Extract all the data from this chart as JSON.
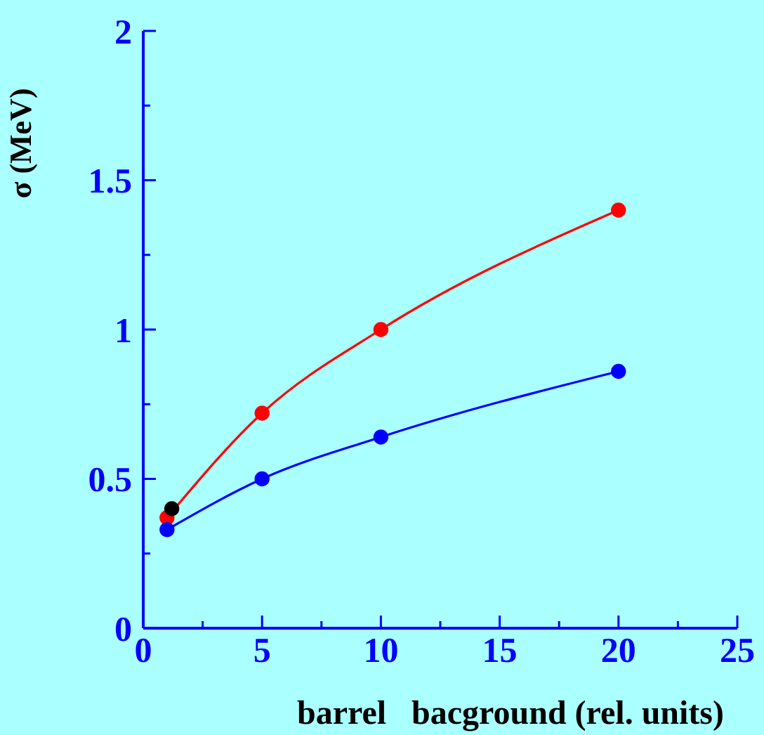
{
  "chart_data": {
    "type": "line",
    "ylabel": "σ (MeV)",
    "xlabel": "barrel   bacground (rel. units)",
    "xlim": [
      0,
      25
    ],
    "xticks": [
      0,
      {
        "value": 2.5,
        "label": null
      },
      5,
      {
        "value": 7.5,
        "label": null
      },
      10,
      {
        "value": 12.5,
        "label": null
      },
      15,
      {
        "value": 17.5,
        "label": null
      },
      20,
      {
        "value": 22.5,
        "label": null
      },
      25
    ],
    "ylim": [
      0,
      2
    ],
    "yticks": [
      0,
      {
        "value": 0.25,
        "label": null
      },
      0.5,
      {
        "value": 0.75,
        "label": null
      },
      1,
      {
        "value": 1.25,
        "label": null
      },
      1.5,
      {
        "value": 1.75,
        "label": null
      },
      2
    ],
    "grid": false,
    "marker": "circle",
    "series": [
      {
        "color": "#ff0000",
        "x": [
          1,
          5,
          10,
          20
        ],
        "values": [
          0.37,
          0.72,
          1.0,
          1.4
        ]
      },
      {
        "color": "#0000ff",
        "x": [
          1,
          5,
          10,
          20
        ],
        "values": [
          0.33,
          0.5,
          0.64,
          0.86
        ]
      },
      {
        "type": "scatter",
        "color": "#000000",
        "x": [
          1.2
        ],
        "values": [
          0.4
        ]
      }
    ]
  }
}
